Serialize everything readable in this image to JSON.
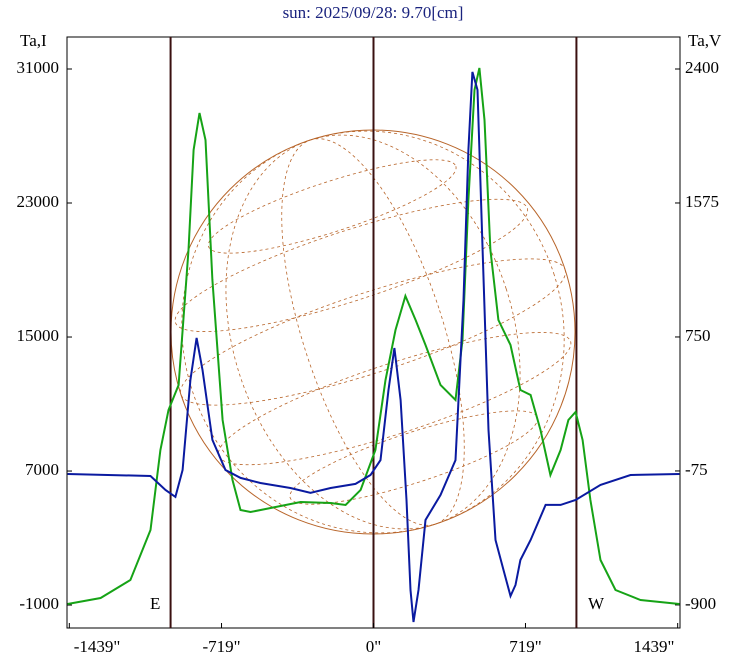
{
  "chart_data": {
    "type": "line",
    "title": "sun: 2025/09/28: 9.70[cm]",
    "ylabel": "Ta,I",
    "y2label": "Ta,V",
    "annotations": [
      "E",
      "W"
    ],
    "xlim": [
      -1450,
      1450
    ],
    "xticks": [
      {
        "value": -1439,
        "label": "-1439\""
      },
      {
        "value": -719,
        "label": "-719\""
      },
      {
        "value": 0,
        "label": "0\""
      },
      {
        "value": 719,
        "label": "719\""
      },
      {
        "value": 1439,
        "label": "1439\""
      }
    ],
    "ylim": [
      -2370,
      32910
    ],
    "yticks": [
      -1000,
      7000,
      15000,
      23000,
      31000
    ],
    "y2lim": [
      -1042,
      2597
    ],
    "y2ticks": [
      -900,
      -75,
      750,
      1575,
      2400
    ],
    "vlines": [
      -960,
      0,
      960
    ],
    "series": [
      {
        "name": "Ta,I",
        "color": "#16a316",
        "axis": "y",
        "x": [
          -1447,
          -1291,
          -1150,
          -1055,
          -1008,
          -970,
          -922,
          -875,
          -851,
          -823,
          -795,
          -762,
          -714,
          -667,
          -629,
          -582,
          -487,
          -345,
          -203,
          -132,
          -61,
          9,
          57,
          104,
          151,
          199,
          246,
          317,
          388,
          421,
          449,
          478,
          501,
          525,
          553,
          591,
          648,
          695,
          743,
          790,
          837,
          885,
          922,
          956,
          989,
          1026,
          1074,
          1145,
          1263,
          1447
        ],
        "values": [
          -940,
          -580,
          495,
          3478,
          8254,
          10642,
          12135,
          20194,
          26164,
          28373,
          26760,
          18403,
          10045,
          6463,
          4672,
          4553,
          4792,
          5150,
          5090,
          4970,
          5866,
          8254,
          12433,
          15418,
          17448,
          16015,
          14522,
          12135,
          11240,
          14821,
          23179,
          29746,
          31060,
          27955,
          20194,
          16015,
          14522,
          11836,
          11537,
          9448,
          6761,
          8254,
          10045,
          10523,
          8851,
          5269,
          1687,
          -104,
          -701,
          -940
        ]
      },
      {
        "name": "Ta,V",
        "color": "#0a1aa0",
        "axis": "y2",
        "x": [
          -1447,
          -1055,
          -984,
          -937,
          -903,
          -866,
          -837,
          -809,
          -762,
          -700,
          -629,
          -535,
          -393,
          -298,
          -203,
          -85,
          -14,
          33,
          71,
          99,
          128,
          156,
          175,
          189,
          213,
          246,
          317,
          388,
          426,
          449,
          468,
          492,
          516,
          544,
          577,
          615,
          648,
          672,
          695,
          743,
          814,
          885,
          956,
          1074,
          1216,
          1447
        ],
        "values": [
          -94,
          -106,
          -192,
          -235,
          -69,
          485,
          744,
          547,
          116,
          -69,
          -118,
          -149,
          -180,
          -210,
          -180,
          -155,
          -100,
          -8,
          424,
          682,
          362,
          -254,
          -808,
          -1005,
          -808,
          -377,
          -223,
          -8,
          978,
          1901,
          2382,
          2271,
          1286,
          177,
          -500,
          -685,
          -845,
          -777,
          -623,
          -500,
          -284,
          -284,
          -254,
          -161,
          -100,
          -94
        ]
      }
    ]
  }
}
